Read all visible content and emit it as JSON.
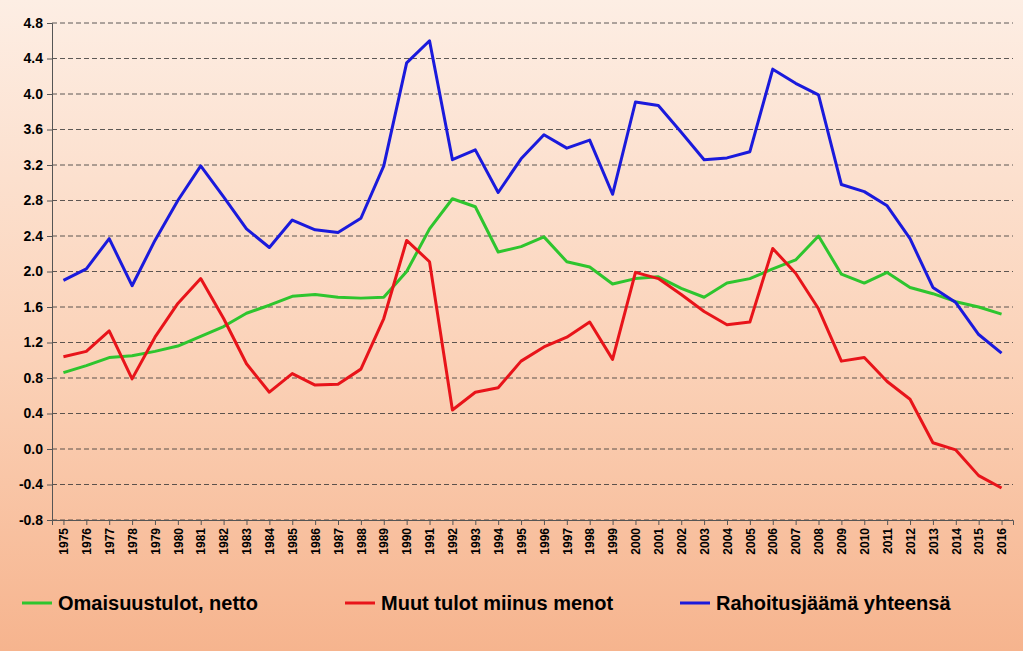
{
  "chart_data": {
    "type": "line",
    "categories": [
      "1975",
      "1976",
      "1977",
      "1978",
      "1979",
      "1980",
      "1981",
      "1982",
      "1983",
      "1984",
      "1985",
      "1986",
      "1987",
      "1988",
      "1989",
      "1990",
      "1991",
      "1992",
      "1993",
      "1994",
      "1995",
      "1996",
      "1997",
      "1998",
      "1999",
      "2000",
      "2001",
      "2002",
      "2003",
      "2004",
      "2005",
      "2006",
      "2007",
      "2008",
      "2009",
      "2010",
      "2011",
      "2012",
      "2013",
      "2014",
      "2015",
      "2016"
    ],
    "series": [
      {
        "name": "Omaisuustulot, netto",
        "color": "#2ec52e",
        "values": [
          0.86,
          0.94,
          1.03,
          1.05,
          1.1,
          1.16,
          1.27,
          1.38,
          1.53,
          1.62,
          1.72,
          1.74,
          1.71,
          1.7,
          1.71,
          2.0,
          2.48,
          2.82,
          2.73,
          2.22,
          2.28,
          2.39,
          2.11,
          2.05,
          1.86,
          1.92,
          1.94,
          1.81,
          1.71,
          1.87,
          1.92,
          2.03,
          2.13,
          2.4,
          1.97,
          1.87,
          1.99,
          1.82,
          1.75,
          1.66,
          1.6,
          1.52
        ]
      },
      {
        "name": "Muut tulot miinus menot",
        "color": "#e8141a",
        "values": [
          1.04,
          1.1,
          1.33,
          0.79,
          1.26,
          1.64,
          1.92,
          1.47,
          0.96,
          0.64,
          0.85,
          0.72,
          0.73,
          0.9,
          1.47,
          2.35,
          2.11,
          0.44,
          0.64,
          0.69,
          0.99,
          1.15,
          1.26,
          1.43,
          1.01,
          1.99,
          1.92,
          1.74,
          1.55,
          1.4,
          1.43,
          2.26,
          1.98,
          1.58,
          0.99,
          1.03,
          0.76,
          0.56,
          0.07,
          -0.01,
          -0.3,
          -0.44
        ]
      },
      {
        "name": "Rahoitusjäämä yhteensä",
        "color": "#1a1adc",
        "values": [
          1.9,
          2.03,
          2.37,
          1.84,
          2.35,
          2.8,
          3.19,
          2.84,
          2.48,
          2.27,
          2.58,
          2.47,
          2.44,
          2.6,
          3.19,
          4.35,
          4.6,
          3.26,
          3.37,
          2.89,
          3.27,
          3.54,
          3.39,
          3.48,
          2.87,
          3.91,
          3.87,
          3.57,
          3.26,
          3.28,
          3.35,
          4.28,
          4.12,
          3.99,
          2.98,
          2.9,
          2.74,
          2.37,
          1.82,
          1.65,
          1.29,
          1.08
        ]
      }
    ],
    "ylim": [
      -0.8,
      4.8
    ],
    "yticks": [
      -0.8,
      -0.4,
      {
        "value": 0,
        "label": "0.0"
      },
      0.4,
      0.8,
      1.2,
      1.6,
      {
        "value": 2,
        "label": "2.0"
      },
      2.4,
      2.8,
      3.2,
      3.6,
      {
        "value": 4,
        "label": "4.0"
      },
      4.4,
      4.8
    ],
    "grid": true,
    "legend": "bottom"
  }
}
